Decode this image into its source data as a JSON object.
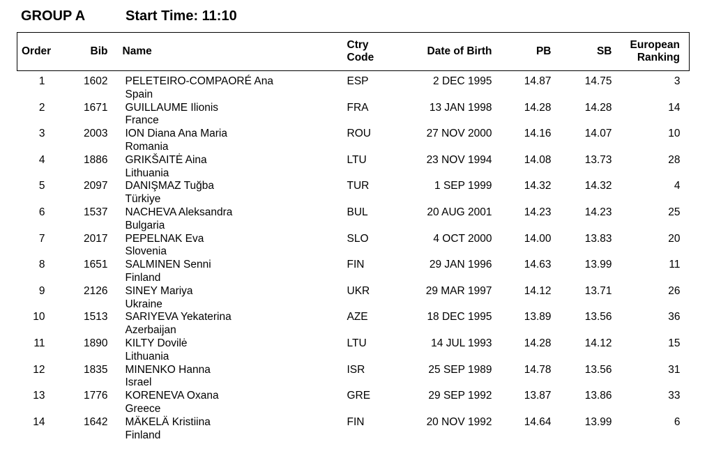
{
  "page": {
    "group_title": "GROUP A",
    "start_time": "Start Time: 11:10"
  },
  "table": {
    "headers": {
      "order": "Order",
      "bib": "Bib",
      "name": "Name",
      "ctry_code": "Ctry\nCode",
      "date_of_birth": "Date of Birth",
      "pb": "PB",
      "sb": "SB",
      "european_ranking": "European\nRanking"
    },
    "rows": [
      {
        "order": "1",
        "bib": "1602",
        "name": "PELETEIRO-COMPAORÉ Ana",
        "country": "Spain",
        "ctry": "ESP",
        "dob": "2 DEC 1995",
        "pb": "14.87",
        "sb": "14.75",
        "rank": "3"
      },
      {
        "order": "2",
        "bib": "1671",
        "name": "GUILLAUME Ilionis",
        "country": "France",
        "ctry": "FRA",
        "dob": "13 JAN 1998",
        "pb": "14.28",
        "sb": "14.28",
        "rank": "14"
      },
      {
        "order": "3",
        "bib": "2003",
        "name": "ION Diana Ana Maria",
        "country": "Romania",
        "ctry": "ROU",
        "dob": "27 NOV 2000",
        "pb": "14.16",
        "sb": "14.07",
        "rank": "10"
      },
      {
        "order": "4",
        "bib": "1886",
        "name": "GRIKŠAITĖ Aina",
        "country": "Lithuania",
        "ctry": "LTU",
        "dob": "23 NOV 1994",
        "pb": "14.08",
        "sb": "13.73",
        "rank": "28"
      },
      {
        "order": "5",
        "bib": "2097",
        "name": "DANIŞMAZ Tuğba",
        "country": "Türkiye",
        "ctry": "TUR",
        "dob": "1 SEP 1999",
        "pb": "14.32",
        "sb": "14.32",
        "rank": "4"
      },
      {
        "order": "6",
        "bib": "1537",
        "name": "NACHEVA Aleksandra",
        "country": "Bulgaria",
        "ctry": "BUL",
        "dob": "20 AUG 2001",
        "pb": "14.23",
        "sb": "14.23",
        "rank": "25"
      },
      {
        "order": "7",
        "bib": "2017",
        "name": "PEPELNAK Eva",
        "country": "Slovenia",
        "ctry": "SLO",
        "dob": "4 OCT 2000",
        "pb": "14.00",
        "sb": "13.83",
        "rank": "20"
      },
      {
        "order": "8",
        "bib": "1651",
        "name": "SALMINEN Senni",
        "country": "Finland",
        "ctry": "FIN",
        "dob": "29 JAN 1996",
        "pb": "14.63",
        "sb": "13.99",
        "rank": "11"
      },
      {
        "order": "9",
        "bib": "2126",
        "name": "SINEY Mariya",
        "country": "Ukraine",
        "ctry": "UKR",
        "dob": "29 MAR 1997",
        "pb": "14.12",
        "sb": "13.71",
        "rank": "26"
      },
      {
        "order": "10",
        "bib": "1513",
        "name": "SARIYEVA Yekaterina",
        "country": "Azerbaijan",
        "ctry": "AZE",
        "dob": "18 DEC 1995",
        "pb": "13.89",
        "sb": "13.56",
        "rank": "36"
      },
      {
        "order": "11",
        "bib": "1890",
        "name": "KILTY Dovilė",
        "country": "Lithuania",
        "ctry": "LTU",
        "dob": "14 JUL 1993",
        "pb": "14.28",
        "sb": "14.12",
        "rank": "15"
      },
      {
        "order": "12",
        "bib": "1835",
        "name": "MINENKO Hanna",
        "country": "Israel",
        "ctry": "ISR",
        "dob": "25 SEP 1989",
        "pb": "14.78",
        "sb": "13.56",
        "rank": "31"
      },
      {
        "order": "13",
        "bib": "1776",
        "name": "KORENEVA Oxana",
        "country": "Greece",
        "ctry": "GRE",
        "dob": "29 SEP 1992",
        "pb": "13.87",
        "sb": "13.86",
        "rank": "33"
      },
      {
        "order": "14",
        "bib": "1642",
        "name": "MÄKELÄ Kristiina",
        "country": "Finland",
        "ctry": "FIN",
        "dob": "20 NOV 1992",
        "pb": "14.64",
        "sb": "13.99",
        "rank": "6"
      }
    ]
  }
}
